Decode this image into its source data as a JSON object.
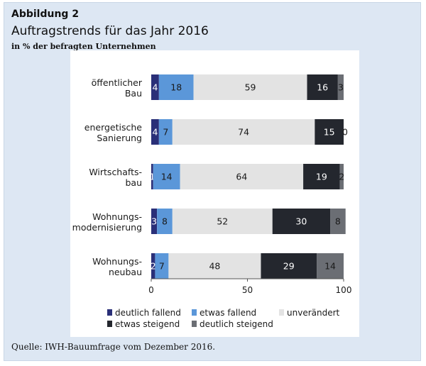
{
  "figure": {
    "label": "Abbildung 2",
    "title": "Auftragstrends für das Jahr 2016",
    "subtitle": "in % der befragten Unternehmen",
    "source": "Quelle: IWH-Bauumfrage vom Dezember 2016."
  },
  "chart_data": {
    "type": "bar",
    "orientation": "horizontal",
    "stacked": true,
    "title": "Auftragstrends für das Jahr 2016",
    "subtitle": "in % der befragten Unternehmen",
    "categories": [
      [
        "öffentlicher",
        "Bau"
      ],
      [
        "energetische",
        "Sanierung"
      ],
      [
        "Wirtschafts-",
        "bau"
      ],
      [
        "Wohnungs-",
        "modernisierung"
      ],
      [
        "Wohnungs-",
        "neubau"
      ]
    ],
    "series": [
      {
        "name": "deutlich fallend",
        "color": "#2a2f78",
        "label_color": "#ffffff",
        "values": [
          4,
          4,
          1,
          3,
          2
        ]
      },
      {
        "name": "etwas fallend",
        "color": "#5b97d9",
        "label_color": "#1a1a1a",
        "values": [
          18,
          7,
          14,
          8,
          7
        ]
      },
      {
        "name": "unverändert",
        "color": "#e3e3e3",
        "label_color": "#1a1a1a",
        "values": [
          59,
          74,
          64,
          52,
          48
        ]
      },
      {
        "name": "etwas steigend",
        "color": "#24272e",
        "label_color": "#ffffff",
        "values": [
          16,
          15,
          19,
          30,
          29
        ]
      },
      {
        "name": "deutlich steigend",
        "color": "#6b6e74",
        "label_color": "#1a1a1a",
        "values": [
          3,
          0,
          2,
          8,
          14
        ]
      }
    ],
    "xlim": [
      0,
      100
    ],
    "xticks": [
      "0",
      "50",
      "100"
    ],
    "grid": false,
    "legend_position": "bottom"
  }
}
